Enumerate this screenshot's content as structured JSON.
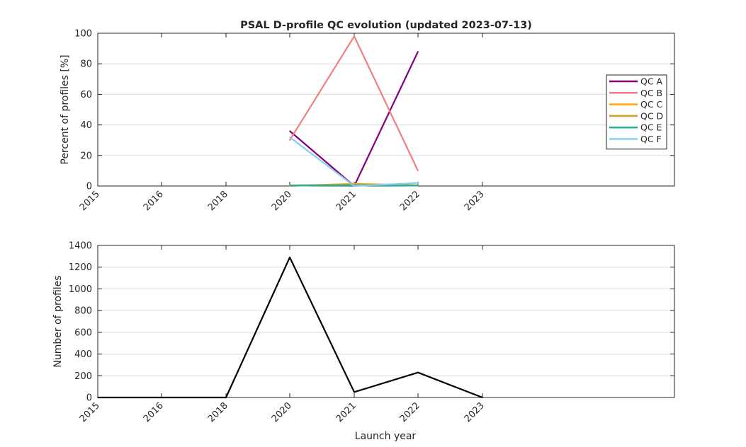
{
  "title": "PSAL D-profile QC evolution (updated 2023-07-13)",
  "colors": {
    "qc_a": "#800080",
    "qc_b": "#f08080",
    "qc_c": "#ffa500",
    "qc_d": "#d4a020",
    "qc_e": "#20b2aa",
    "qc_f": "#87ceeb",
    "count": "#000000"
  },
  "chart_data": [
    {
      "type": "line",
      "title": "PSAL D-profile QC evolution (updated 2023-07-13)",
      "xlabel": "",
      "ylabel": "Percent of profiles [%]",
      "categories": [
        "2015",
        "2016",
        "2018",
        "2020",
        "2021",
        "2022",
        "2023"
      ],
      "ylim": [
        0,
        100
      ],
      "yticks": [
        0,
        20,
        40,
        60,
        80,
        100
      ],
      "grid": true,
      "legend": "right",
      "series": [
        {
          "name": "QC A",
          "color": "#800080",
          "x": [
            "2020",
            "2021",
            "2022"
          ],
          "values": [
            36,
            0,
            88
          ]
        },
        {
          "name": "QC B",
          "color": "#f08080",
          "x": [
            "2020",
            "2021",
            "2022"
          ],
          "values": [
            30,
            98,
            10
          ]
        },
        {
          "name": "QC C",
          "color": "#ffa500",
          "x": [
            "2020",
            "2021",
            "2022"
          ],
          "values": [
            0,
            1.5,
            0.5
          ]
        },
        {
          "name": "QC D",
          "color": "#d4a020",
          "x": [
            "2020",
            "2021",
            "2022"
          ],
          "values": [
            0.5,
            1,
            0.5
          ]
        },
        {
          "name": "QC E",
          "color": "#20b2aa",
          "x": [
            "2020",
            "2021",
            "2022"
          ],
          "values": [
            0.3,
            0.5,
            0.3
          ]
        },
        {
          "name": "QC F",
          "color": "#87ceeb",
          "x": [
            "2020",
            "2021",
            "2022"
          ],
          "values": [
            32,
            0,
            2
          ]
        }
      ]
    },
    {
      "type": "line",
      "title": "",
      "xlabel": "Launch year",
      "ylabel": "Number of profiles",
      "categories": [
        "2015",
        "2016",
        "2018",
        "2020",
        "2021",
        "2022",
        "2023"
      ],
      "ylim": [
        0,
        1400
      ],
      "yticks": [
        0,
        200,
        400,
        600,
        800,
        1000,
        1200,
        1400
      ],
      "grid": true,
      "series": [
        {
          "color": "#000000",
          "x": [
            "2015",
            "2016",
            "2018",
            "2020",
            "2021",
            "2022",
            "2023"
          ],
          "values": [
            0,
            0,
            0,
            1290,
            50,
            230,
            0
          ]
        }
      ]
    }
  ]
}
